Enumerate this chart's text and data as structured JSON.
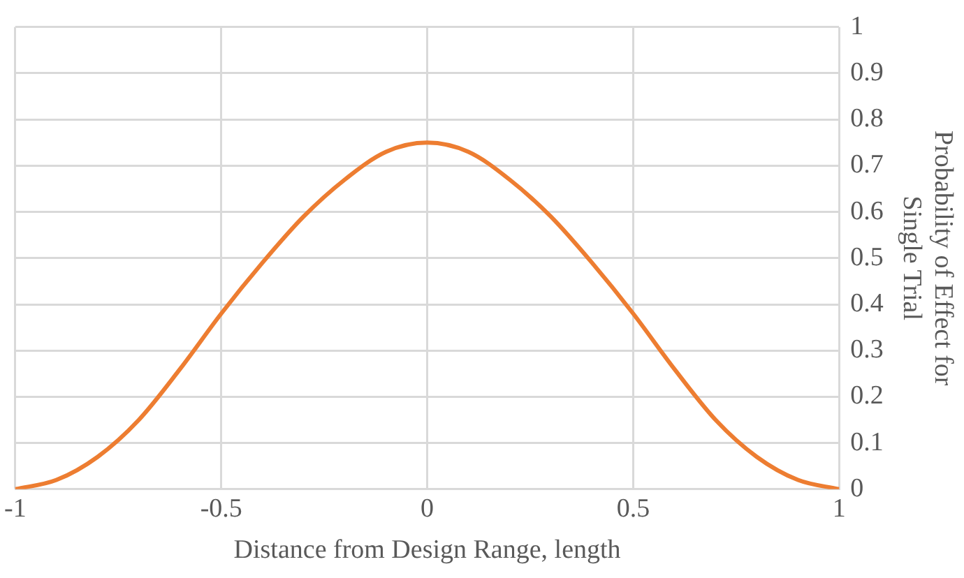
{
  "chart_data": {
    "type": "line",
    "xlabel": "Distance from Design Range, length",
    "ylabel": "Probability of Effect for Single Trial",
    "series": [
      {
        "color": "#ed7d31",
        "x": [
          -1,
          -0.9,
          -0.8,
          -0.7,
          -0.6,
          -0.5,
          -0.4,
          -0.3,
          -0.2,
          -0.1,
          0,
          0.1,
          0.2,
          0.3,
          0.4,
          0.5,
          0.6,
          0.7,
          0.8,
          0.9,
          1
        ],
        "values": [
          0,
          0.02,
          0.07,
          0.15,
          0.26,
          0.38,
          0.49,
          0.59,
          0.67,
          0.73,
          0.75,
          0.73,
          0.67,
          0.59,
          0.49,
          0.38,
          0.26,
          0.15,
          0.07,
          0.02,
          0
        ]
      }
    ],
    "xlim": [
      -1,
      1
    ],
    "xticks": [
      -1,
      -0.5,
      0,
      0.5,
      1
    ],
    "ylim": [
      0,
      1
    ],
    "yticks": [
      0,
      0.1,
      0.2,
      0.3,
      0.4,
      0.5,
      0.6,
      0.7,
      0.8,
      0.9,
      1
    ],
    "grid": true,
    "legend": false,
    "marker": "none",
    "line_style": "solid"
  }
}
